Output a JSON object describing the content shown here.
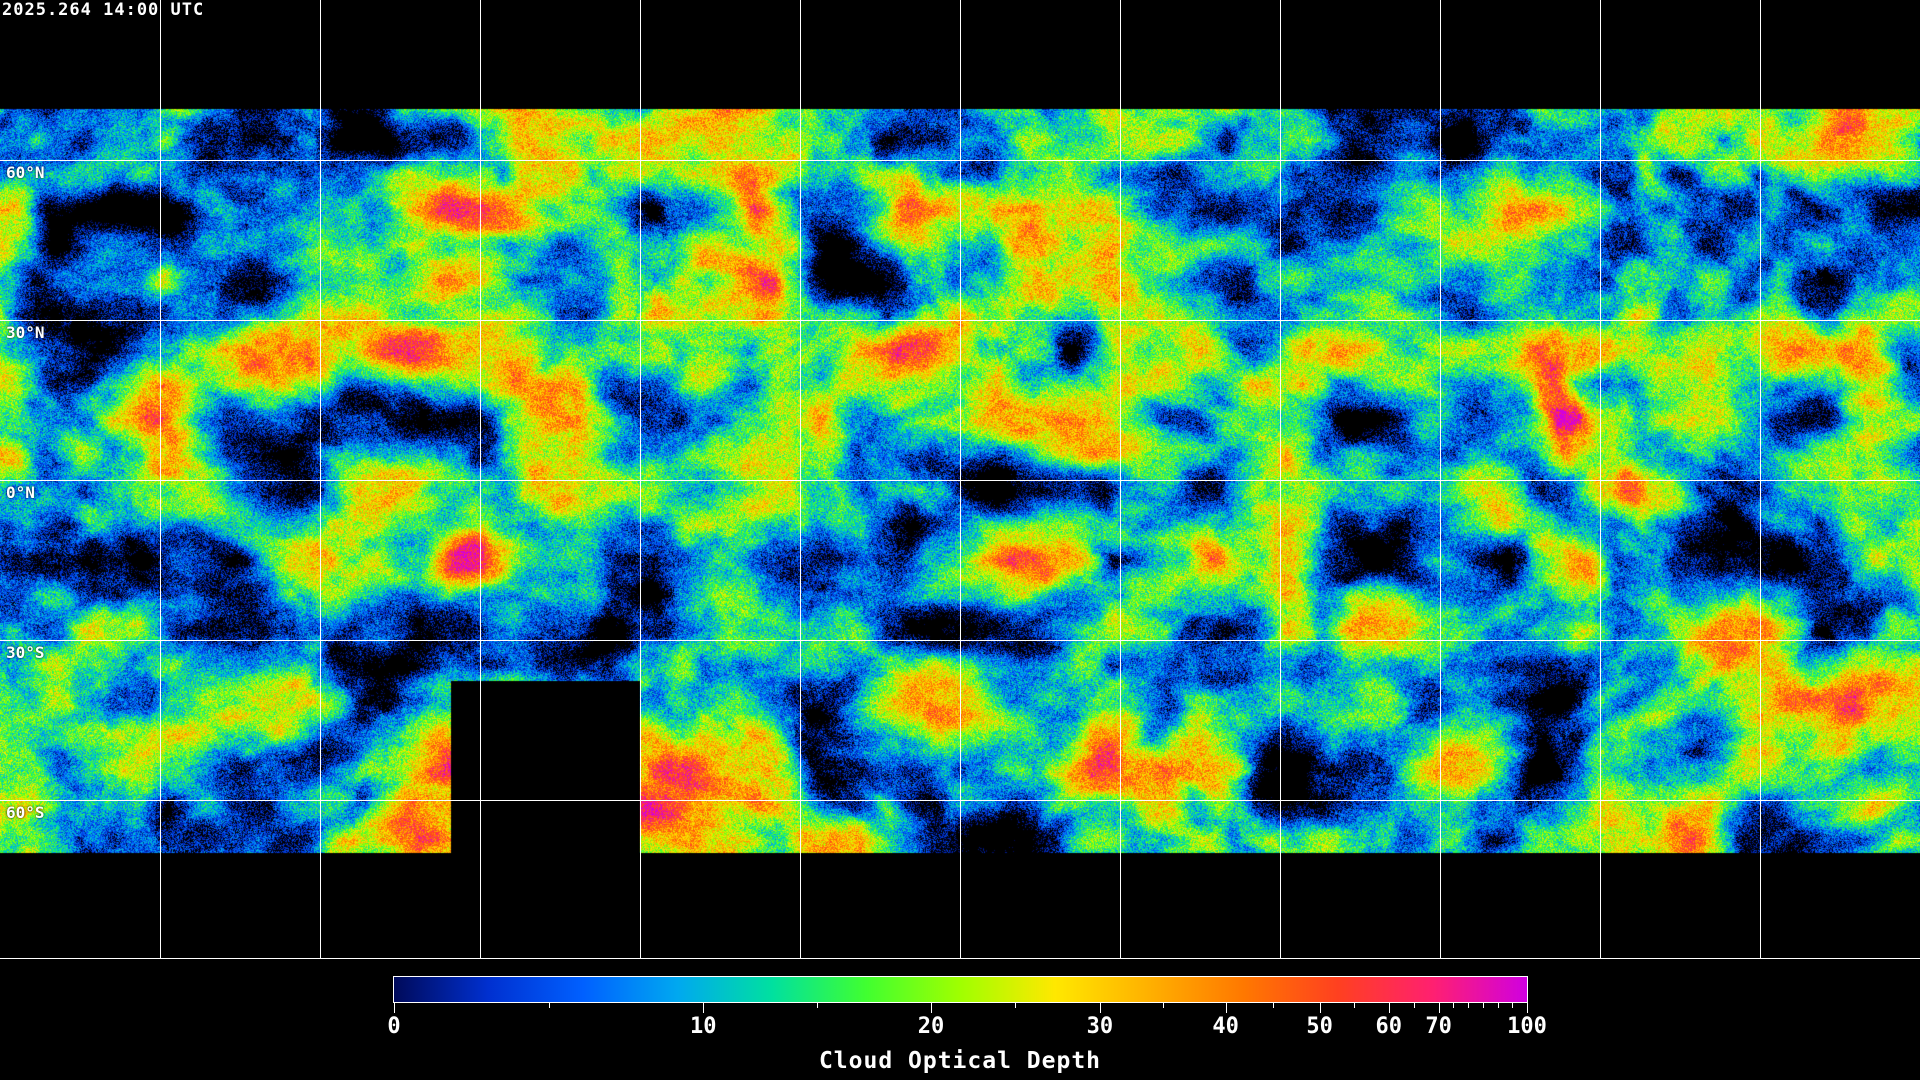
{
  "timestamp": "2025.264 14:00 UTC",
  "map": {
    "projection": "equirectangular",
    "grid_spacing_deg": 30,
    "lat_labels": [
      "60°N",
      "30°N",
      "0°N",
      "30°S",
      "60°S"
    ],
    "coastline_color": "#ffffff",
    "no_data_color": "#000000"
  },
  "colorbar": {
    "title": "Cloud Optical Depth",
    "min": 0,
    "max": 100,
    "major_ticks": [
      "0",
      "10",
      "20",
      "30",
      "40",
      "50",
      "60",
      "70",
      "100"
    ],
    "minor_ticks": [
      5,
      15,
      25,
      35,
      45,
      55,
      65,
      75,
      80,
      85,
      90,
      95
    ],
    "colors": [
      "#000a5a",
      "#0030d0",
      "#0060ff",
      "#00a8f0",
      "#00e0a0",
      "#40ff30",
      "#a0ff00",
      "#ffe800",
      "#ffb000",
      "#ff7800",
      "#ff4020",
      "#ff2070",
      "#d000e0"
    ]
  }
}
